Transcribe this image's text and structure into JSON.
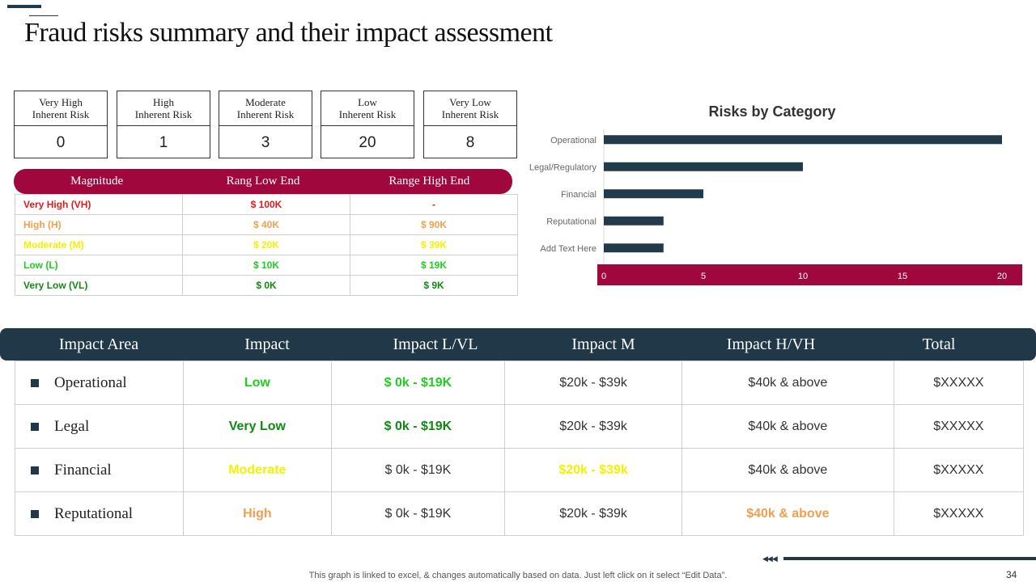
{
  "title": "Fraud risks summary and their impact assessment",
  "risk_boxes": [
    {
      "label_line1": "Very High",
      "label_line2": "Inherent Risk",
      "value": "0"
    },
    {
      "label_line1": "High",
      "label_line2": "Inherent Risk",
      "value": "1"
    },
    {
      "label_line1": "Moderate",
      "label_line2": "Inherent Risk",
      "value": "3"
    },
    {
      "label_line1": "Low",
      "label_line2": "Inherent Risk",
      "value": "20"
    },
    {
      "label_line1": "Very Low",
      "label_line2": "Inherent Risk",
      "value": "8"
    }
  ],
  "magnitude": {
    "headers": [
      "Magnitude",
      "Rang Low End",
      "Range High End"
    ],
    "rows": [
      {
        "name": "Very High (VH)",
        "low": "$ 100K",
        "high": "-",
        "color": "#e01b1b"
      },
      {
        "name": "High (H)",
        "low": "$ 40K",
        "high": "$ 90K",
        "color": "#f0a050"
      },
      {
        "name": "Moderate (M)",
        "low": "$ 20K",
        "high": "$ 39K",
        "color": "#f2f200"
      },
      {
        "name": "Low (L)",
        "low": "$ 10K",
        "high": "$ 19K",
        "color": "#22cc22"
      },
      {
        "name": "Very Low (VL)",
        "low": "$ 0K",
        "high": "$ 9K",
        "color": "#118811"
      }
    ]
  },
  "chart_data": {
    "type": "bar",
    "orientation": "horizontal",
    "title": "Risks by Category",
    "categories": [
      "Operational",
      "Legal/Regulatory",
      "Financial",
      "Reputational",
      "Add Text Here"
    ],
    "values": [
      20,
      10,
      5,
      3,
      3
    ],
    "xlim": [
      0,
      20
    ],
    "xticks": [
      "0",
      "5",
      "10",
      "15",
      "20"
    ],
    "bar_color": "#233a4a",
    "axis_band_color": "#a0073d"
  },
  "impact": {
    "headers": [
      "Impact Area",
      "Impact",
      "Impact L/VL",
      "Impact M",
      "Impact H/VH",
      "Total"
    ],
    "rows": [
      {
        "area": "Operational",
        "impact": "Low",
        "impact_color": "#22cc22",
        "lvl": "$ 0k - $19K",
        "lvl_color": "#22cc22",
        "lvl_bold": true,
        "m": "$20k - $39k",
        "m_color": "#333333",
        "m_bold": false,
        "hvh": "$40k & above",
        "hvh_color": "#333333",
        "hvh_bold": false,
        "total": "$XXXXX"
      },
      {
        "area": "Legal",
        "impact": "Very Low",
        "impact_color": "#118811",
        "lvl": "$ 0k - $19K",
        "lvl_color": "#118811",
        "lvl_bold": true,
        "m": "$20k - $39k",
        "m_color": "#333333",
        "m_bold": false,
        "hvh": "$40k & above",
        "hvh_color": "#333333",
        "hvh_bold": false,
        "total": "$XXXXX"
      },
      {
        "area": "Financial",
        "impact": "Moderate",
        "impact_color": "#f2f200",
        "lvl": "$ 0k - $19K",
        "lvl_color": "#333333",
        "lvl_bold": false,
        "m": "$20k - $39k",
        "m_color": "#f2f200",
        "m_bold": true,
        "hvh": "$40k & above",
        "hvh_color": "#333333",
        "hvh_bold": false,
        "total": "$XXXXX"
      },
      {
        "area": "Reputational",
        "impact": "High",
        "impact_color": "#f0a050",
        "lvl": "$ 0k - $19K",
        "lvl_color": "#333333",
        "lvl_bold": false,
        "m": "$20k - $39k",
        "m_color": "#333333",
        "m_bold": false,
        "hvh": "$40k & above",
        "hvh_color": "#f0a050",
        "hvh_bold": true,
        "total": "$XXXXX"
      }
    ]
  },
  "footer": {
    "note": "This graph is linked to excel, & changes automatically based on data. Just left click on it select “Edit Data”.",
    "page_number": "34",
    "arrows": "◀◀◀"
  }
}
